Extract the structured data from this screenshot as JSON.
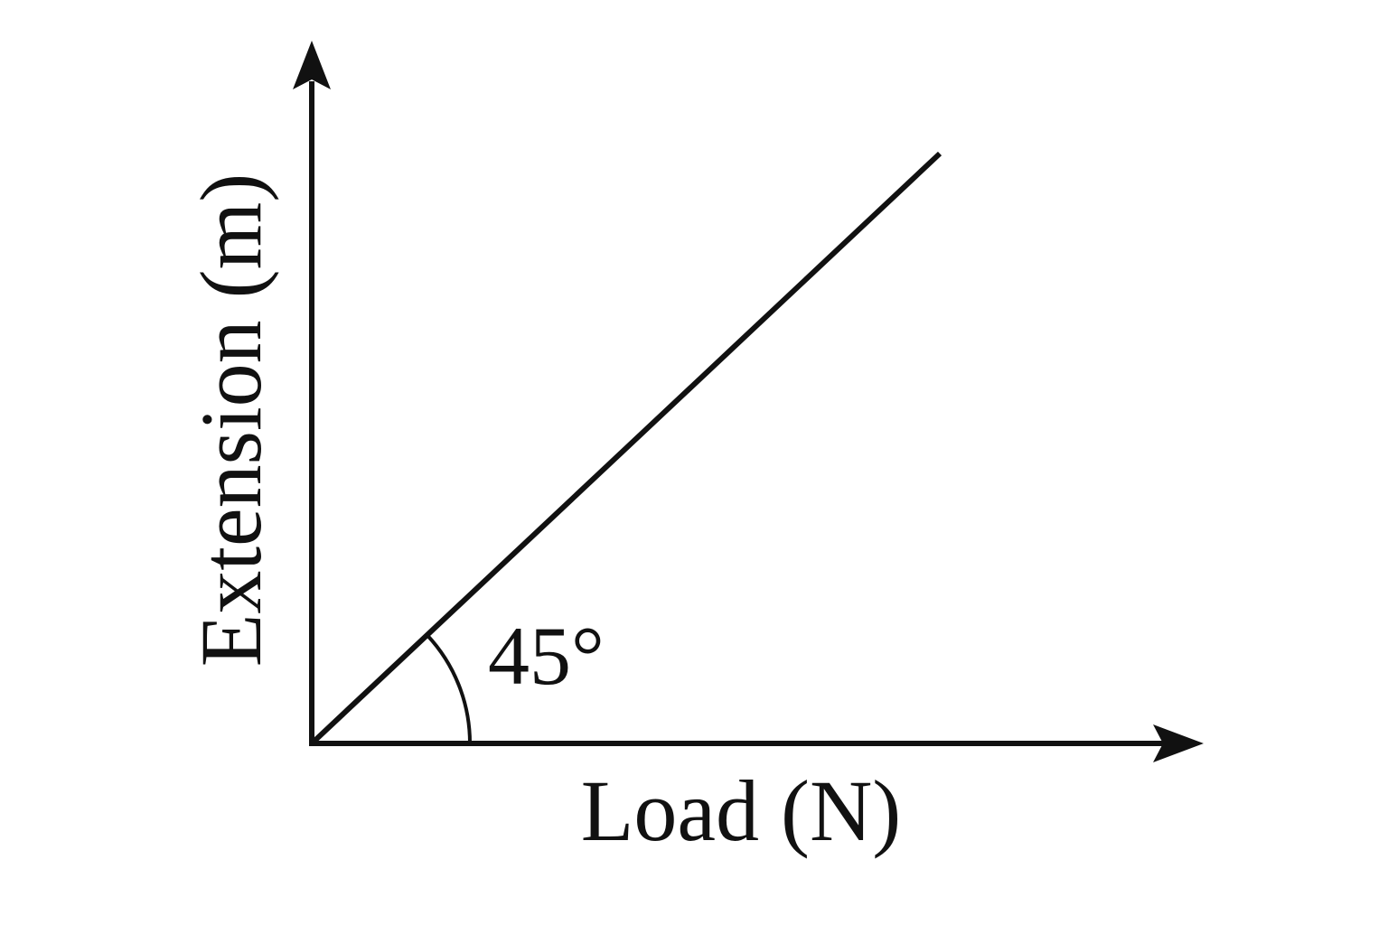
{
  "x_axis": {
    "label": "Load (N)"
  },
  "y_axis": {
    "label": "Extension (m)"
  },
  "angle": {
    "label": "45°"
  }
}
